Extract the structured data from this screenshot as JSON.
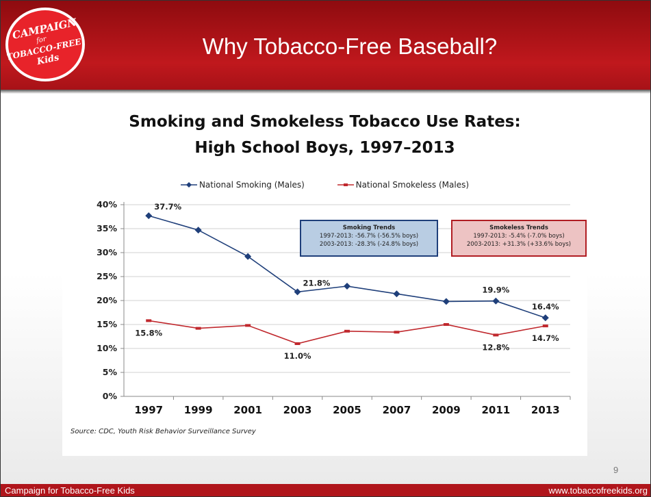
{
  "slide": {
    "title": "Why Tobacco-Free Baseball?",
    "page_number": "9",
    "footer_left": "Campaign for Tobacco-Free Kids",
    "footer_right": "www.tobaccofreekids.org",
    "logo": {
      "line1": "CAMPAIGN",
      "line2": "for",
      "line3": "TOBACCO-FREE",
      "line4": "Kids"
    },
    "colors": {
      "header": "#b0151b",
      "smoking": "#1f3f7a",
      "smokeless": "#c0282d"
    }
  },
  "chart_data": {
    "type": "line",
    "title_line1": "Smoking and Smokeless Tobacco Use Rates:",
    "title_line2": "High School Boys, 1997–2013",
    "categories": [
      "1997",
      "1999",
      "2001",
      "2003",
      "2005",
      "2007",
      "2009",
      "2011",
      "2013"
    ],
    "series": [
      {
        "name": "National Smoking (Males)",
        "color": "#1f3f7a",
        "marker": "diamond",
        "values": [
          37.7,
          34.7,
          29.2,
          21.8,
          23.0,
          21.4,
          19.8,
          19.9,
          16.4
        ]
      },
      {
        "name": "National Smokeless (Males)",
        "color": "#c0282d",
        "marker": "dash",
        "values": [
          15.8,
          14.2,
          14.8,
          11.0,
          13.6,
          13.4,
          15.0,
          12.8,
          14.7
        ]
      }
    ],
    "data_labels": [
      {
        "series": 0,
        "index": 0,
        "text": "37.7%",
        "pos": "above-right"
      },
      {
        "series": 0,
        "index": 3,
        "text": "21.8%",
        "pos": "above-right"
      },
      {
        "series": 0,
        "index": 7,
        "text": "19.9%",
        "pos": "above"
      },
      {
        "series": 0,
        "index": 8,
        "text": "16.4%",
        "pos": "above"
      },
      {
        "series": 1,
        "index": 0,
        "text": "15.8%",
        "pos": "below"
      },
      {
        "series": 1,
        "index": 3,
        "text": "11.0%",
        "pos": "below"
      },
      {
        "series": 1,
        "index": 7,
        "text": "12.8%",
        "pos": "below"
      },
      {
        "series": 1,
        "index": 8,
        "text": "14.7%",
        "pos": "below"
      }
    ],
    "y_ticks": [
      "0%",
      "5%",
      "10%",
      "15%",
      "20%",
      "25%",
      "30%",
      "35%",
      "40%"
    ],
    "ylim": [
      0,
      40
    ],
    "grid": true,
    "legend_position": "top",
    "source": "Source:  CDC, Youth Risk Behavior Surveillance Survey",
    "annotations": [
      {
        "title": "Smoking Trends",
        "line1": "1997-2013:  -56.7% (-56.5% boys)",
        "line2": "2003-2013:  -28.3% (-24.8% boys)"
      },
      {
        "title": "Smokeless Trends",
        "line1": "1997-2013:  -5.4% (-7.0% boys)",
        "line2": "2003-2013:  +31.3% (+33.6% boys)"
      }
    ]
  }
}
